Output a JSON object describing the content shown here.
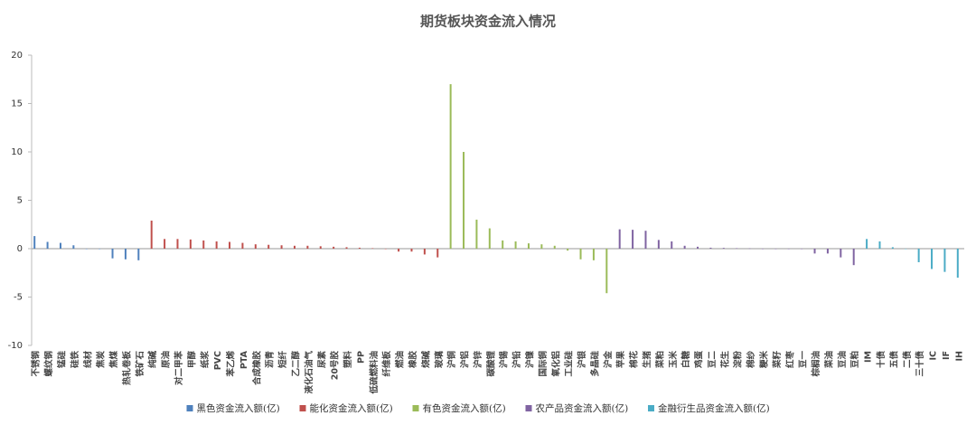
{
  "chart_data": {
    "type": "bar",
    "title": "期货板块资金流入情况",
    "categories": [
      "不锈钢",
      "螺纹钢",
      "锰硅",
      "硅铁",
      "线材",
      "焦炭",
      "焦煤",
      "热轧卷板",
      "铁矿石",
      "纯碱",
      "原油",
      "对二甲苯",
      "甲醇",
      "纸浆",
      "PVC",
      "苯乙烯",
      "PTA",
      "合成橡胶",
      "沥青",
      "短纤",
      "乙二醇",
      "液化石油气",
      "尿素",
      "20号胶",
      "塑料",
      "PP",
      "低硫燃料油",
      "纤维板",
      "燃油",
      "橡胶",
      "烧碱",
      "玻璃",
      "沪铜",
      "沪铝",
      "沪锌",
      "碳酸锂",
      "沪锡",
      "沪铅",
      "沪镍",
      "国际铜",
      "氧化铝",
      "工业硅",
      "沪银",
      "多晶硅",
      "沪金",
      "苹果",
      "棉花",
      "生猪",
      "菜粕",
      "玉米",
      "白糖",
      "鸡蛋",
      "豆二",
      "花生",
      "淀粉",
      "棉纱",
      "粳米",
      "菜籽",
      "红枣",
      "豆一",
      "棕榈油",
      "菜油",
      "豆油",
      "豆粕",
      "IM",
      "十债",
      "五债",
      "二债",
      "三十债",
      "IC",
      "IF",
      "IH"
    ],
    "series": [
      {
        "name": "黑色资金流入额(亿)",
        "color": "#4f81bd",
        "values": [
          1.3,
          0.7,
          0.6,
          0.35,
          0,
          0,
          -1.0,
          -1.1,
          -1.2,
          null,
          null,
          null,
          null,
          null,
          null,
          null,
          null,
          null,
          null,
          null,
          null,
          null,
          null,
          null,
          null,
          null,
          null,
          null,
          null,
          null,
          null,
          null,
          null,
          null,
          null,
          null,
          null,
          null,
          null,
          null,
          null,
          null,
          null,
          null,
          null,
          null,
          null,
          null,
          null,
          null,
          null,
          null,
          null,
          null,
          null,
          null,
          null,
          null,
          null,
          null,
          null,
          null,
          null,
          null,
          null,
          null,
          null,
          null,
          null,
          null,
          null,
          null
        ]
      },
      {
        "name": "能化资金流入额(亿)",
        "color": "#c0504d",
        "values": [
          null,
          null,
          null,
          null,
          null,
          null,
          null,
          null,
          null,
          2.9,
          1.0,
          1.0,
          0.95,
          0.85,
          0.75,
          0.7,
          0.6,
          0.45,
          0.4,
          0.35,
          0.3,
          0.3,
          0.25,
          0.2,
          0.15,
          0.1,
          0.05,
          0,
          -0.3,
          -0.3,
          -0.6,
          -0.9,
          null,
          null,
          null,
          null,
          null,
          null,
          null,
          null,
          null,
          null,
          null,
          null,
          null,
          null,
          null,
          null,
          null,
          null,
          null,
          null,
          null,
          null,
          null,
          null,
          null,
          null,
          null,
          null,
          null,
          null,
          null,
          null,
          null,
          null,
          null,
          null,
          null,
          null,
          null,
          null
        ]
      },
      {
        "name": "有色资金流入额(亿)",
        "color": "#9bbb59",
        "values": [
          null,
          null,
          null,
          null,
          null,
          null,
          null,
          null,
          null,
          null,
          null,
          null,
          null,
          null,
          null,
          null,
          null,
          null,
          null,
          null,
          null,
          null,
          null,
          null,
          null,
          null,
          null,
          null,
          null,
          null,
          null,
          null,
          17,
          10,
          3,
          2.1,
          0.85,
          0.75,
          0.55,
          0.45,
          0.3,
          -0.2,
          -1.1,
          -1.2,
          -4.6,
          null,
          null,
          null,
          null,
          null,
          null,
          null,
          null,
          null,
          null,
          null,
          null,
          null,
          null,
          null,
          null,
          null,
          null,
          null,
          null,
          null,
          null,
          null,
          null,
          null,
          null,
          null
        ]
      },
      {
        "name": "农产品资金流入额(亿)",
        "color": "#8064a2",
        "values": [
          null,
          null,
          null,
          null,
          null,
          null,
          null,
          null,
          null,
          null,
          null,
          null,
          null,
          null,
          null,
          null,
          null,
          null,
          null,
          null,
          null,
          null,
          null,
          null,
          null,
          null,
          null,
          null,
          null,
          null,
          null,
          null,
          null,
          null,
          null,
          null,
          null,
          null,
          null,
          null,
          null,
          null,
          null,
          null,
          null,
          2.0,
          1.95,
          1.85,
          0.9,
          0.75,
          0.3,
          0.2,
          0.1,
          0.08,
          0.05,
          0.03,
          0,
          0,
          0,
          0,
          -0.5,
          -0.5,
          -0.9,
          -1.7,
          null,
          null,
          null,
          null,
          null,
          null,
          null,
          null
        ]
      },
      {
        "name": "金融衍生品资金流入额(亿)",
        "color": "#4bacc6",
        "values": [
          null,
          null,
          null,
          null,
          null,
          null,
          null,
          null,
          null,
          null,
          null,
          null,
          null,
          null,
          null,
          null,
          null,
          null,
          null,
          null,
          null,
          null,
          null,
          null,
          null,
          null,
          null,
          null,
          null,
          null,
          null,
          null,
          null,
          null,
          null,
          null,
          null,
          null,
          null,
          null,
          null,
          null,
          null,
          null,
          null,
          null,
          null,
          null,
          null,
          null,
          null,
          null,
          null,
          null,
          null,
          null,
          null,
          null,
          null,
          null,
          null,
          null,
          null,
          null,
          1.0,
          0.75,
          0.15,
          0,
          -1.4,
          -2.1,
          -2.4,
          -3.0
        ]
      }
    ],
    "ylim": [
      -10,
      20
    ],
    "yticks": [
      -10,
      -5,
      0,
      5,
      10,
      15,
      20
    ],
    "grid": false,
    "legend": "bottom"
  }
}
